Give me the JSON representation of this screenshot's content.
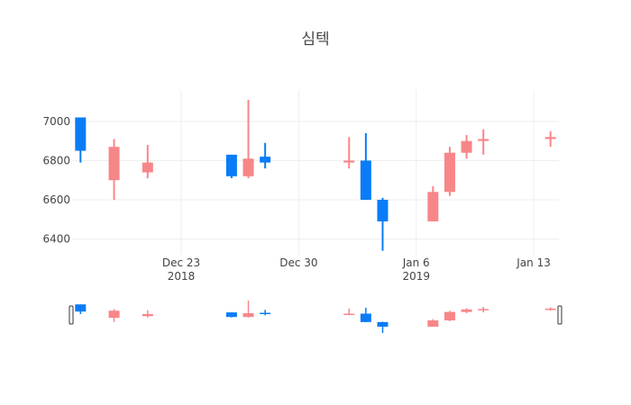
{
  "chart_data": {
    "type": "candlestick",
    "title": "심텍",
    "xlabel": "",
    "ylabel": "",
    "x_range": [
      "2018-12-17",
      "2019-01-14"
    ],
    "ylim": [
      6320,
      7160
    ],
    "grid": true,
    "rangeslider": true,
    "colors": {
      "increasing": "#0a7cf7",
      "decreasing": "#f78689",
      "grid": "#eeeeee",
      "text": "#444444"
    },
    "y_ticks": [
      {
        "value": 6400,
        "label": "6400"
      },
      {
        "value": 6600,
        "label": "6600"
      },
      {
        "value": 6800,
        "label": "6800"
      },
      {
        "value": 7000,
        "label": "7000"
      }
    ],
    "x_ticks": [
      {
        "date": "2018-12-23",
        "label": "Dec 23",
        "sub": "2018"
      },
      {
        "date": "2018-12-30",
        "label": "Dec 30",
        "sub": ""
      },
      {
        "date": "2019-01-06",
        "label": "Jan 6",
        "sub": "2019"
      },
      {
        "date": "2019-01-13",
        "label": "Jan 13",
        "sub": ""
      }
    ],
    "candles": [
      {
        "date": "2018-12-17",
        "open": 6850,
        "high": 7020,
        "low": 6790,
        "close": 7020
      },
      {
        "date": "2018-12-19",
        "open": 6870,
        "high": 6910,
        "low": 6600,
        "close": 6700
      },
      {
        "date": "2018-12-21",
        "open": 6790,
        "high": 6880,
        "low": 6710,
        "close": 6740
      },
      {
        "date": "2018-12-26",
        "open": 6720,
        "high": 6830,
        "low": 6710,
        "close": 6830
      },
      {
        "date": "2018-12-27",
        "open": 6810,
        "high": 7110,
        "low": 6710,
        "close": 6720
      },
      {
        "date": "2018-12-28",
        "open": 6790,
        "high": 6890,
        "low": 6760,
        "close": 6820
      },
      {
        "date": "2019-01-02",
        "open": 6800,
        "high": 6920,
        "low": 6760,
        "close": 6790
      },
      {
        "date": "2019-01-03",
        "open": 6600,
        "high": 6940,
        "low": 6600,
        "close": 6800
      },
      {
        "date": "2019-01-04",
        "open": 6490,
        "high": 6610,
        "low": 6340,
        "close": 6600
      },
      {
        "date": "2019-01-07",
        "open": 6640,
        "high": 6670,
        "low": 6490,
        "close": 6490
      },
      {
        "date": "2019-01-08",
        "open": 6840,
        "high": 6870,
        "low": 6620,
        "close": 6640
      },
      {
        "date": "2019-01-09",
        "open": 6900,
        "high": 6930,
        "low": 6810,
        "close": 6840
      },
      {
        "date": "2019-01-10",
        "open": 6910,
        "high": 6960,
        "low": 6830,
        "close": 6900
      },
      {
        "date": "2019-01-14",
        "open": 6920,
        "high": 6950,
        "low": 6870,
        "close": 6910
      }
    ]
  }
}
